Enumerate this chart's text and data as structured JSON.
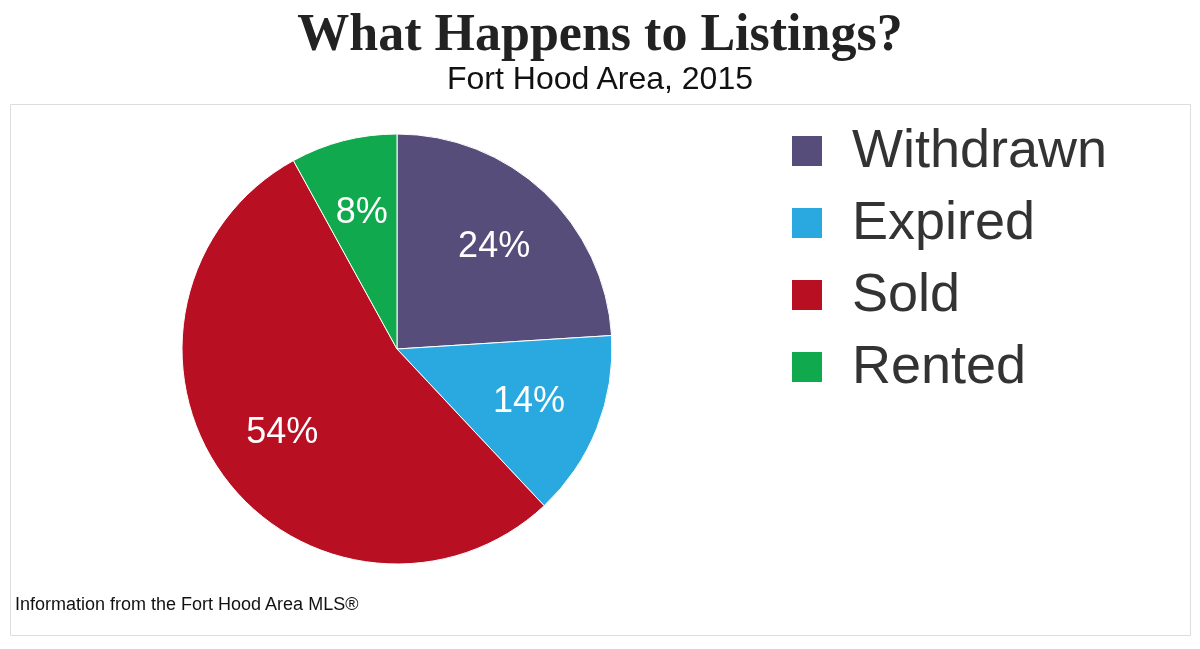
{
  "chart_data": {
    "type": "pie",
    "title": "What Happens to Listings?",
    "subtitle": "Fort Hood Area, 2015",
    "categories": [
      "Withdrawn",
      "Expired",
      "Sold",
      "Rented"
    ],
    "values": [
      24,
      14,
      54,
      8
    ],
    "colors": [
      "#574d7a",
      "#2aa9e0",
      "#b80f22",
      "#10a94d"
    ],
    "value_labels": [
      "24%",
      "14%",
      "54%",
      "8%"
    ],
    "legend": "right",
    "annotations": [
      "Information from the Fort Hood Area MLS®"
    ]
  }
}
